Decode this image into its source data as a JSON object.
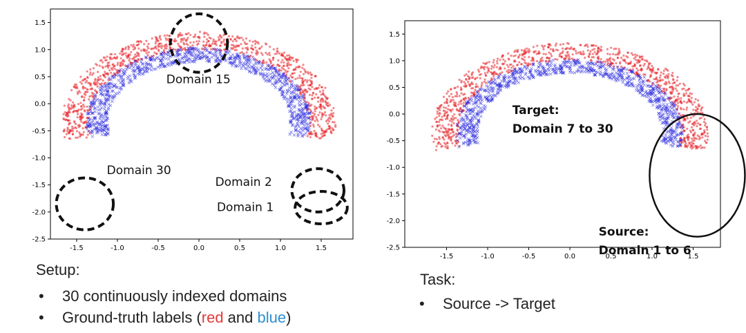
{
  "chart_data": [
    {
      "type": "scatter",
      "title": "",
      "xlabel": "",
      "ylabel": "",
      "xlim": [
        -1.8,
        1.8
      ],
      "ylim": [
        -2.5,
        1.75
      ],
      "xticks": [
        "-1.5",
        "-1.0",
        "-0.5",
        "0.0",
        "0.5",
        "1.0",
        "1.5"
      ],
      "yticks": [
        "-2.5",
        "-2.0",
        "-1.5",
        "-1.0",
        "-0.5",
        "0.0",
        "0.5",
        "1.0",
        "1.5"
      ],
      "series": [
        {
          "color": "#e8262b",
          "marker": "circle",
          "shape": "outer arc, radius ~1.5 centered at (0,-0.35)",
          "arc_radius_range": [
            1.35,
            1.68
          ]
        },
        {
          "color": "#2727dd",
          "marker": "x",
          "shape": "inner arc, radius ~1.3 centered at (0,-0.35)",
          "arc_radius_range": [
            1.12,
            1.38
          ]
        }
      ],
      "annotations": [
        {
          "text": "Domain 15",
          "x": -0.4,
          "y": 0.38
        },
        {
          "text": "Domain 30",
          "x": -1.13,
          "y": -1.3
        },
        {
          "text": "Domain 2",
          "x": 0.2,
          "y": -1.52
        },
        {
          "text": "Domain 1",
          "x": 0.22,
          "y": -1.98
        }
      ],
      "highlights": [
        {
          "style": "dashed",
          "cx": 0.0,
          "cy": 1.12,
          "rx": 0.35,
          "ry": 0.54
        },
        {
          "style": "dashed",
          "cx": -1.4,
          "cy": -1.85,
          "rx": 0.35,
          "ry": 0.48
        },
        {
          "style": "dashed",
          "cx": 1.46,
          "cy": -1.6,
          "rx": 0.32,
          "ry": 0.4
        },
        {
          "style": "dashed",
          "cx": 1.5,
          "cy": -1.92,
          "rx": 0.32,
          "ry": 0.3
        }
      ]
    },
    {
      "type": "scatter",
      "title": "",
      "xlabel": "",
      "ylabel": "",
      "xlim": [
        -1.8,
        1.8
      ],
      "ylim": [
        -2.5,
        1.75
      ],
      "xticks": [
        "-1.5",
        "-1.0",
        "-0.5",
        "0.0",
        "0.5",
        "1.0",
        "1.5"
      ],
      "yticks": [
        "-2.5",
        "-2.0",
        "-1.5",
        "-1.0",
        "-0.5",
        "0.0",
        "0.5",
        "1.0",
        "1.5"
      ],
      "series": [
        {
          "color": "#e8262b",
          "marker": "circle",
          "shape": "outer arc, radius ~1.5 centered at (0,-0.35)",
          "arc_radius_range": [
            1.35,
            1.68
          ]
        },
        {
          "color": "#2727dd",
          "marker": "x",
          "shape": "inner arc, radius ~1.3 centered at (0,-0.35)",
          "arc_radius_range": [
            1.12,
            1.38
          ]
        }
      ],
      "annotations": [
        {
          "lines": [
            "Target:",
            "Domain 7 to 30"
          ],
          "x": -0.7,
          "y": 0.0
        },
        {
          "lines": [
            "Source:",
            "Domain 1 to 6"
          ],
          "x": 0.35,
          "y": -2.28
        }
      ],
      "highlights": [
        {
          "style": "solid",
          "cx": 1.55,
          "cy": -1.15,
          "rx": 0.58,
          "ry": 1.15
        }
      ]
    }
  ],
  "setup": {
    "heading": "Setup:",
    "bullets": [
      "30 continuously indexed domains"
    ],
    "labels_prefix": "Ground-truth labels (",
    "labels_red": "red",
    "labels_and": " and ",
    "labels_blue": "blue",
    "labels_suffix": ")"
  },
  "task": {
    "heading": "Task:",
    "bullets": [
      "Source -> Target"
    ]
  }
}
